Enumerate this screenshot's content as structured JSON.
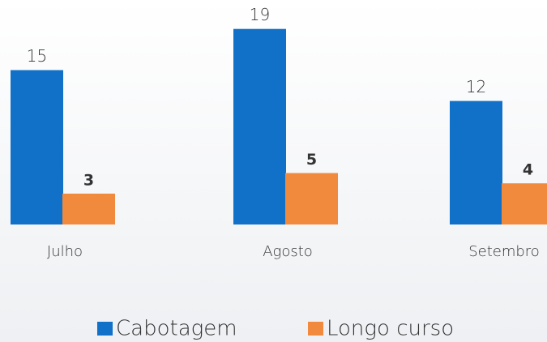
{
  "chart_data": {
    "type": "bar",
    "categories": [
      "Julho",
      "Agosto",
      "Setembro"
    ],
    "series": [
      {
        "name": "Cabotagem",
        "color": "#1170c8",
        "values": [
          15,
          19,
          12
        ]
      },
      {
        "name": "Longo curso",
        "color": "#f28a3e",
        "values": [
          3,
          5,
          4
        ]
      }
    ]
  }
}
